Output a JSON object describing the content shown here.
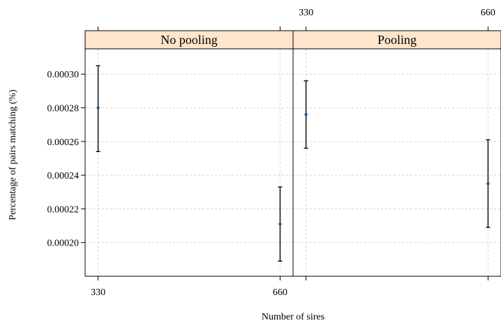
{
  "chart_data": {
    "type": "scatter",
    "xlabel": "Number of sires",
    "ylabel": "Percentage of pairs matching (%)",
    "ylim": [
      0.00018,
      0.000315
    ],
    "grid": true,
    "y_ticks": [
      "0.00020",
      "0.00022",
      "0.00024",
      "0.00026",
      "0.00028",
      "0.00030"
    ],
    "y_tick_values": [
      0.0002,
      0.00022,
      0.00024,
      0.00026,
      0.00028,
      0.0003
    ],
    "x_ticks": [
      "330",
      "660"
    ],
    "x_tick_values": [
      330,
      660
    ],
    "xlim": [
      306.5,
      683.5
    ],
    "panels": [
      {
        "title": "No pooling",
        "points": [
          {
            "x": 330,
            "y": 0.00028,
            "lower": 0.000254,
            "upper": 0.000305
          },
          {
            "x": 660,
            "y": 0.000211,
            "lower": 0.000189,
            "upper": 0.000233
          }
        ]
      },
      {
        "title": "Pooling",
        "points": [
          {
            "x": 330,
            "y": 0.000276,
            "lower": 0.000256,
            "upper": 0.000296
          },
          {
            "x": 660,
            "y": 0.000235,
            "lower": 0.000209,
            "upper": 0.000261
          }
        ]
      }
    ]
  }
}
